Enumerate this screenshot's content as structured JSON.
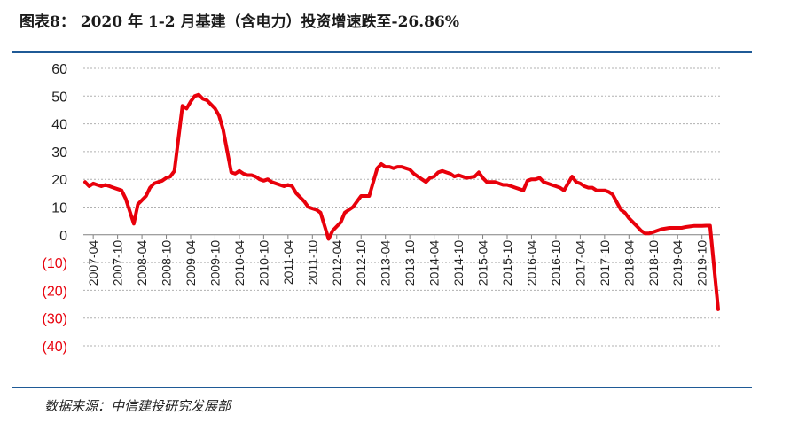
{
  "header": {
    "title": "图表8： 2020 年 1-2 月基建（含电力）投资增速跌至-26.86%"
  },
  "footer": {
    "source": "数据来源：中信建投研究发展部"
  },
  "colors": {
    "line": "#e8000b",
    "rule": "#1f5a96",
    "grid": "#b0b0b0",
    "negative_tick": "#e8000b"
  },
  "chart_data": {
    "type": "line",
    "title": "",
    "xlabel": "",
    "ylabel": "",
    "ylim": [
      -40,
      60
    ],
    "yticks": [
      {
        "label": "60",
        "value": 60
      },
      {
        "label": "50",
        "value": 50
      },
      {
        "label": "40",
        "value": 40
      },
      {
        "label": "30",
        "value": 30
      },
      {
        "label": "20",
        "value": 20
      },
      {
        "label": "10",
        "value": 10
      },
      {
        "label": "0",
        "value": 0
      },
      {
        "label": "(10)",
        "value": -10
      },
      {
        "label": "(20)",
        "value": -20
      },
      {
        "label": "(30)",
        "value": -30
      },
      {
        "label": "(40)",
        "value": -40
      }
    ],
    "grid": true,
    "legend": "none",
    "x_tick_labels": [
      "2007-04",
      "2007-10",
      "2008-04",
      "2008-10",
      "2009-04",
      "2009-10",
      "2010-04",
      "2010-10",
      "2011-04",
      "2011-10",
      "2012-04",
      "2012-10",
      "2013-04",
      "2013-10",
      "2014-04",
      "2014-10",
      "2015-04",
      "2015-10",
      "2016-04",
      "2016-10",
      "2017-04",
      "2017-10",
      "2018-04",
      "2018-10",
      "2019-04",
      "2019-10"
    ],
    "series": [
      {
        "values": [
          [
            "2007-02",
            19
          ],
          [
            "2007-03",
            17.5
          ],
          [
            "2007-04",
            18.5
          ],
          [
            "2007-05",
            18
          ],
          [
            "2007-06",
            17.5
          ],
          [
            "2007-07",
            18
          ],
          [
            "2007-08",
            17.5
          ],
          [
            "2007-09",
            17
          ],
          [
            "2007-10",
            16.5
          ],
          [
            "2007-11",
            16
          ],
          [
            "2007-12",
            13
          ],
          [
            "2008-02",
            4
          ],
          [
            "2008-03",
            11
          ],
          [
            "2008-04",
            12.5
          ],
          [
            "2008-05",
            14
          ],
          [
            "2008-06",
            17
          ],
          [
            "2008-07",
            18.5
          ],
          [
            "2008-08",
            19
          ],
          [
            "2008-09",
            19.5
          ],
          [
            "2008-10",
            20.5
          ],
          [
            "2008-11",
            21
          ],
          [
            "2008-12",
            23
          ],
          [
            "2009-02",
            46.5
          ],
          [
            "2009-03",
            45.5
          ],
          [
            "2009-04",
            48
          ],
          [
            "2009-05",
            50
          ],
          [
            "2009-06",
            50.5
          ],
          [
            "2009-07",
            49
          ],
          [
            "2009-08",
            48.5
          ],
          [
            "2009-09",
            47
          ],
          [
            "2009-10",
            45.5
          ],
          [
            "2009-11",
            43
          ],
          [
            "2009-12",
            38
          ],
          [
            "2010-02",
            22.5
          ],
          [
            "2010-03",
            22
          ],
          [
            "2010-04",
            23
          ],
          [
            "2010-05",
            22
          ],
          [
            "2010-06",
            21.5
          ],
          [
            "2010-07",
            21.5
          ],
          [
            "2010-08",
            21
          ],
          [
            "2010-09",
            20
          ],
          [
            "2010-10",
            19.5
          ],
          [
            "2010-11",
            20
          ],
          [
            "2010-12",
            19
          ],
          [
            "2011-02",
            18
          ],
          [
            "2011-03",
            17.5
          ],
          [
            "2011-04",
            18
          ],
          [
            "2011-05",
            17.5
          ],
          [
            "2011-06",
            15
          ],
          [
            "2011-07",
            13.5
          ],
          [
            "2011-08",
            12
          ],
          [
            "2011-09",
            10
          ],
          [
            "2011-10",
            9.5
          ],
          [
            "2011-11",
            9
          ],
          [
            "2011-12",
            8
          ],
          [
            "2012-02",
            -1.5
          ],
          [
            "2012-03",
            1.5
          ],
          [
            "2012-04",
            3
          ],
          [
            "2012-05",
            4.5
          ],
          [
            "2012-06",
            8
          ],
          [
            "2012-07",
            9
          ],
          [
            "2012-08",
            10
          ],
          [
            "2012-09",
            12
          ],
          [
            "2012-10",
            14
          ],
          [
            "2012-11",
            14
          ],
          [
            "2012-12",
            14
          ],
          [
            "2013-02",
            24
          ],
          [
            "2013-03",
            25.5
          ],
          [
            "2013-04",
            24.5
          ],
          [
            "2013-05",
            24.5
          ],
          [
            "2013-06",
            24
          ],
          [
            "2013-07",
            24.5
          ],
          [
            "2013-08",
            24.5
          ],
          [
            "2013-09",
            24
          ],
          [
            "2013-10",
            23.5
          ],
          [
            "2013-11",
            22
          ],
          [
            "2013-12",
            21
          ],
          [
            "2014-02",
            19
          ],
          [
            "2014-03",
            20.5
          ],
          [
            "2014-04",
            21
          ],
          [
            "2014-05",
            22.5
          ],
          [
            "2014-06",
            23
          ],
          [
            "2014-07",
            22.5
          ],
          [
            "2014-08",
            22
          ],
          [
            "2014-09",
            21
          ],
          [
            "2014-10",
            21.5
          ],
          [
            "2014-11",
            21
          ],
          [
            "2014-12",
            20.5
          ],
          [
            "2015-02",
            21
          ],
          [
            "2015-03",
            22.5
          ],
          [
            "2015-04",
            20.5
          ],
          [
            "2015-05",
            19
          ],
          [
            "2015-06",
            19
          ],
          [
            "2015-07",
            19
          ],
          [
            "2015-08",
            18.5
          ],
          [
            "2015-09",
            18
          ],
          [
            "2015-10",
            18
          ],
          [
            "2015-11",
            17.5
          ],
          [
            "2015-12",
            17
          ],
          [
            "2016-02",
            16
          ],
          [
            "2016-03",
            19.5
          ],
          [
            "2016-04",
            20
          ],
          [
            "2016-05",
            20
          ],
          [
            "2016-06",
            20.5
          ],
          [
            "2016-07",
            19
          ],
          [
            "2016-08",
            18.5
          ],
          [
            "2016-09",
            18
          ],
          [
            "2016-10",
            17.5
          ],
          [
            "2016-11",
            17
          ],
          [
            "2016-12",
            16
          ],
          [
            "2017-02",
            21
          ],
          [
            "2017-03",
            19
          ],
          [
            "2017-04",
            18.5
          ],
          [
            "2017-05",
            17.5
          ],
          [
            "2017-06",
            17
          ],
          [
            "2017-07",
            17
          ],
          [
            "2017-08",
            16
          ],
          [
            "2017-09",
            16
          ],
          [
            "2017-10",
            16
          ],
          [
            "2017-11",
            15.5
          ],
          [
            "2017-12",
            14.5
          ],
          [
            "2018-02",
            9
          ],
          [
            "2018-03",
            8
          ],
          [
            "2018-04",
            6
          ],
          [
            "2018-05",
            4.5
          ],
          [
            "2018-06",
            3
          ],
          [
            "2018-07",
            1.5
          ],
          [
            "2018-08",
            0.5
          ],
          [
            "2018-09",
            0.5
          ],
          [
            "2018-10",
            1
          ],
          [
            "2018-11",
            1.5
          ],
          [
            "2018-12",
            2
          ],
          [
            "2019-02",
            2.5
          ],
          [
            "2019-03",
            2.5
          ],
          [
            "2019-04",
            2.5
          ],
          [
            "2019-05",
            2.5
          ],
          [
            "2019-06",
            2.8
          ],
          [
            "2019-07",
            3
          ],
          [
            "2019-08",
            3.2
          ],
          [
            "2019-09",
            3.2
          ],
          [
            "2019-10",
            3.2
          ],
          [
            "2019-11",
            3.3
          ],
          [
            "2019-12",
            3.3
          ],
          [
            "2020-02",
            -26.86
          ]
        ]
      }
    ]
  }
}
